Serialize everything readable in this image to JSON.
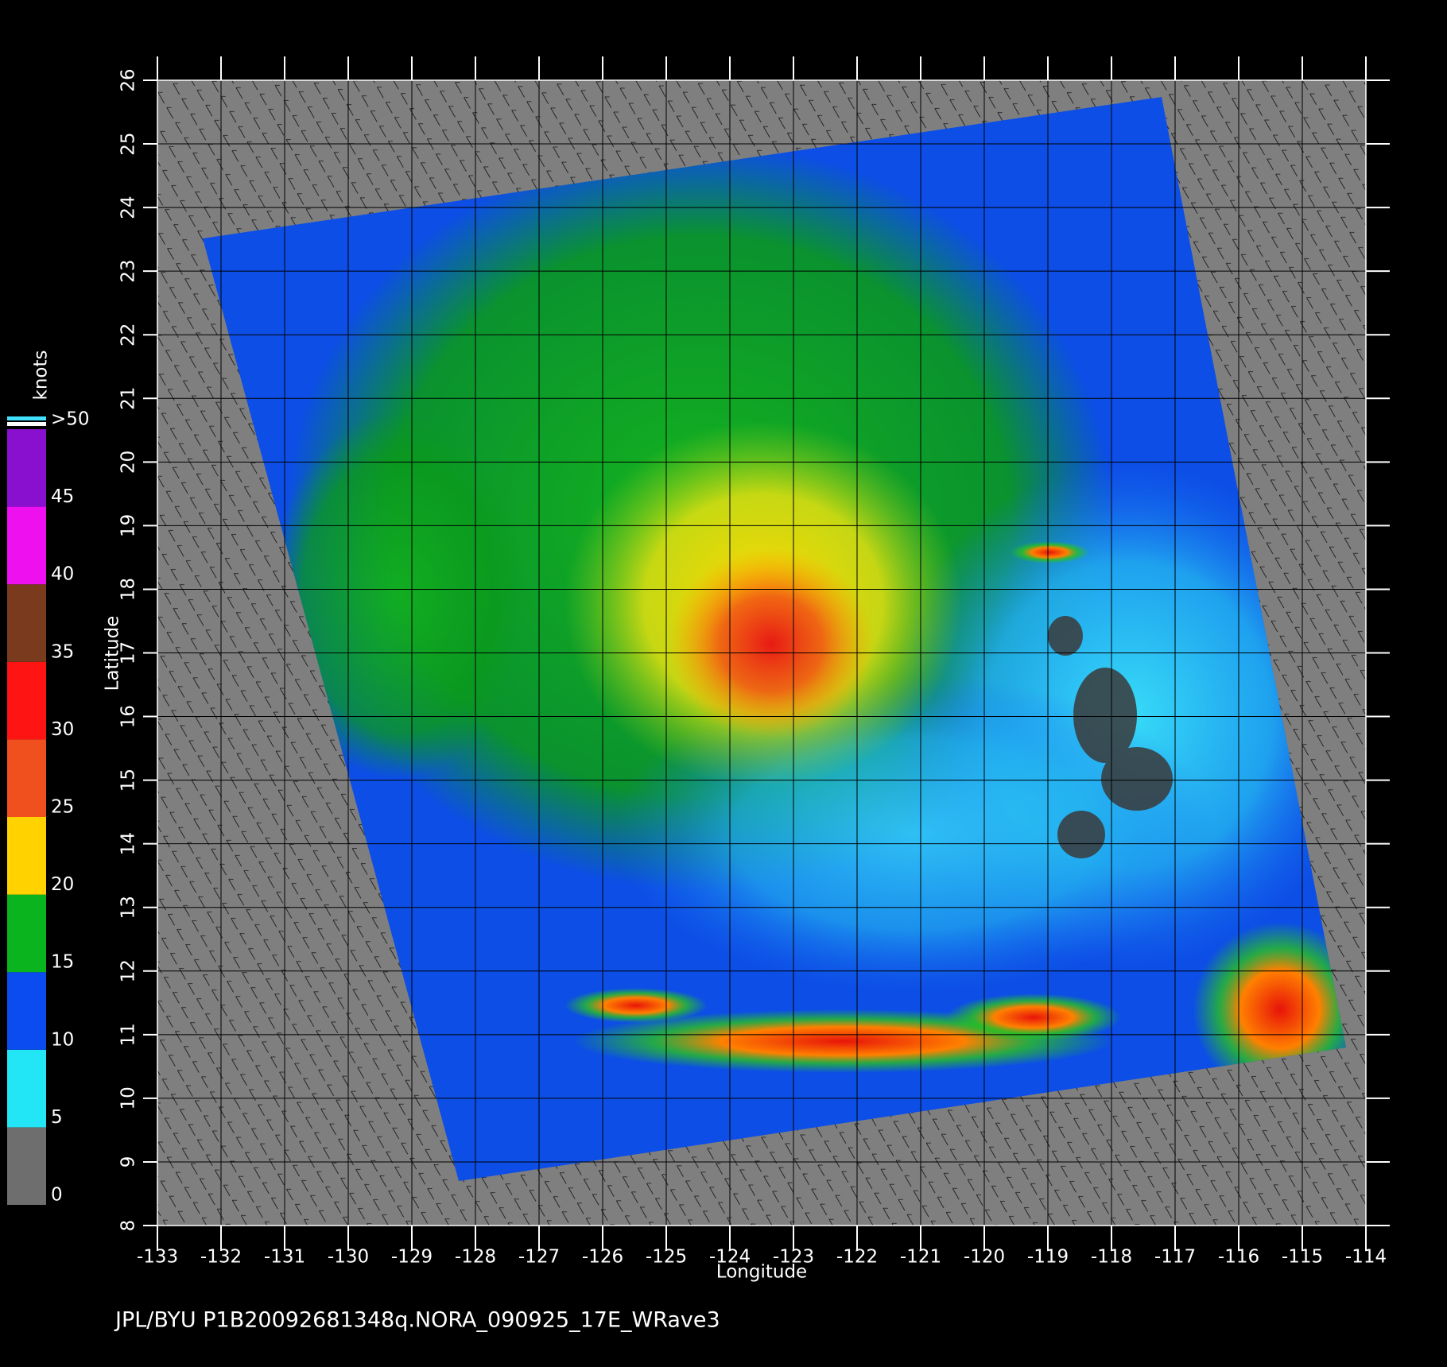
{
  "chart_data": {
    "type": "map",
    "xlabel": "Longitude",
    "ylabel": "Latitude",
    "xlim": [
      -133,
      -114
    ],
    "ylim": [
      8,
      26
    ],
    "xticks": [
      -133,
      -132,
      -131,
      -130,
      -129,
      -128,
      -127,
      -126,
      -125,
      -124,
      -123,
      -122,
      -121,
      -120,
      -119,
      -118,
      -117,
      -116,
      -115,
      -114
    ],
    "yticks": [
      8,
      9,
      10,
      11,
      12,
      13,
      14,
      15,
      16,
      17,
      18,
      19,
      20,
      21,
      22,
      23,
      24,
      25,
      26
    ],
    "grid": true,
    "colorbar": {
      "label": "knots",
      "lim": [
        0,
        50
      ],
      "ticks": [
        0,
        5,
        10,
        15,
        20,
        25,
        30,
        35,
        40,
        45,
        {
          "value": 50,
          "label": ">50"
        }
      ],
      "colors": [
        "#6e6e6e",
        "#22e6f5",
        "#0a4cf0",
        "#0ab41e",
        "#ffd200",
        "#f0501e",
        "#ff1414",
        "#7a3a1e",
        "#ee10ee",
        "#8a10d0"
      ]
    },
    "footer": "JPL/BYU  P1B20092681348q.NORA_090925_17E_WRave3"
  }
}
